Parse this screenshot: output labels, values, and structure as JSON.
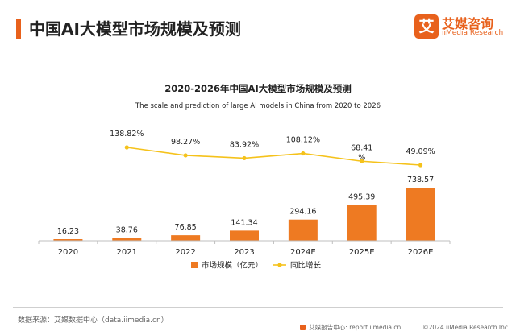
{
  "header": {
    "title": "中国AI大模型市场规模及预测",
    "accent_color": "#e8611c"
  },
  "logo": {
    "glyph": "艾",
    "name_cn": "艾媒咨询",
    "name_en": "iiMedia Research"
  },
  "chart_data": {
    "type": "bar",
    "title": "2020-2026年中国AI大模型市场规模及预测",
    "subtitle": "The scale and prediction of large AI models in China from 2020 to 2026",
    "categories": [
      "2020",
      "2021",
      "2022",
      "2023",
      "2024E",
      "2025E",
      "2026E"
    ],
    "series": [
      {
        "name": "市场规模（亿元）",
        "type": "bar",
        "color": "#ee7a22",
        "values": [
          16.23,
          38.76,
          76.85,
          141.34,
          294.16,
          495.39,
          738.57
        ],
        "labels": [
          "16.23",
          "38.76",
          "76.85",
          "141.34",
          "294.16",
          "495.39",
          "738.57"
        ]
      },
      {
        "name": "同比增长",
        "type": "line",
        "color": "#f5c21b",
        "values": [
          null,
          138.82,
          98.27,
          83.92,
          108.12,
          68.41,
          49.09
        ],
        "labels": [
          "",
          "138.82%",
          "98.27%",
          "83.92%",
          "108.12%",
          "68.41\n%",
          "49.09%"
        ]
      }
    ],
    "legend_position": "bottom-center",
    "grid": false
  },
  "footer": {
    "source": "数据来源：艾媒数据中心（data.iimedia.cn）",
    "report_site": "艾媒报告中心: report.iimedia.cn",
    "copyright": "©2024  iiMedia Research  Inc"
  }
}
